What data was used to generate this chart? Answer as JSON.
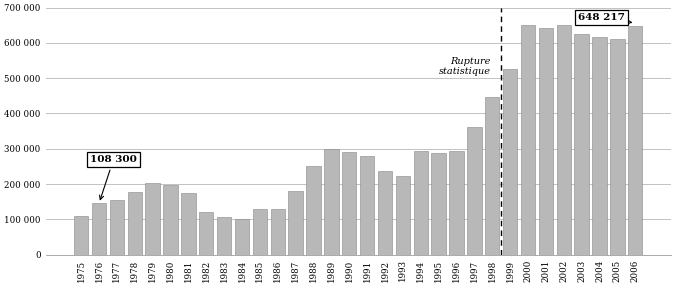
{
  "years": [
    1975,
    1976,
    1977,
    1978,
    1979,
    1980,
    1981,
    1982,
    1983,
    1984,
    1985,
    1986,
    1987,
    1988,
    1989,
    1990,
    1991,
    1992,
    1993,
    1994,
    1995,
    1996,
    1997,
    1998,
    1999,
    2000,
    2001,
    2002,
    2003,
    2004,
    2005,
    2006
  ],
  "values": [
    108300,
    145000,
    155000,
    178000,
    202000,
    197000,
    175000,
    122000,
    106000,
    101000,
    128000,
    128000,
    180000,
    252000,
    300000,
    291000,
    280000,
    238000,
    223000,
    293000,
    288000,
    293000,
    363000,
    446000,
    527000,
    651000,
    641000,
    651000,
    625000,
    617000,
    610000,
    648217
  ],
  "bar_color": "#b8b8b8",
  "bar_edge_color": "#888888",
  "ylim": [
    0,
    700000
  ],
  "yticks": [
    0,
    100000,
    200000,
    300000,
    400000,
    500000,
    600000,
    700000
  ],
  "ytick_labels": [
    "0",
    "100 000",
    "200 000",
    "300 000",
    "400 000",
    "500 000",
    "600 000",
    "700 000"
  ],
  "annotation1_text": "108 300",
  "annotation1_year": 1975,
  "annotation1_value": 108300,
  "annotation2_text": "648 217",
  "annotation2_year": 2006,
  "annotation2_value": 648217,
  "rupture_year": 1998,
  "rupture_text": "Rupture\nstatistique",
  "background_color": "#ffffff",
  "grid_color": "#aaaaaa"
}
